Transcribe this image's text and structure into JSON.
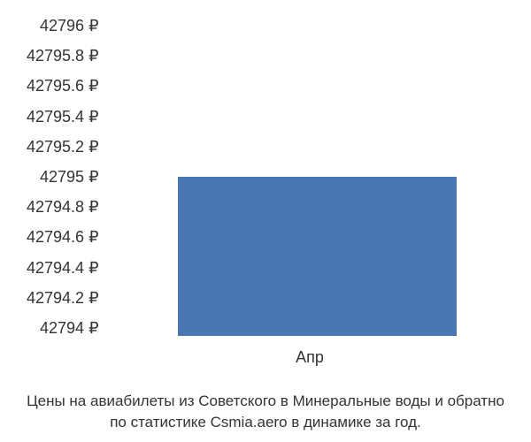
{
  "chart": {
    "type": "bar",
    "y_ticks": [
      "42796 ₽",
      "42795.8 ₽",
      "42795.6 ₽",
      "42795.4 ₽",
      "42795.2 ₽",
      "42795 ₽",
      "42794.8 ₽",
      "42794.6 ₽",
      "42794.4 ₽",
      "42794.2 ₽",
      "42794 ₽"
    ],
    "ylim": [
      42794,
      42796
    ],
    "x_labels": [
      "Апр"
    ],
    "bars": [
      {
        "value": 42795,
        "height_percent": 50,
        "left_percent": 18,
        "width_percent": 70,
        "color": "#4a77b4"
      }
    ],
    "background_color": "#ffffff",
    "text_color": "#333333",
    "tick_fontsize": 18,
    "caption_fontsize": 17
  },
  "caption": {
    "line1": "Цены на авиабилеты из Советского в Минеральные воды и обратно",
    "line2": "по статистике Csmia.aero в динамике за год."
  }
}
